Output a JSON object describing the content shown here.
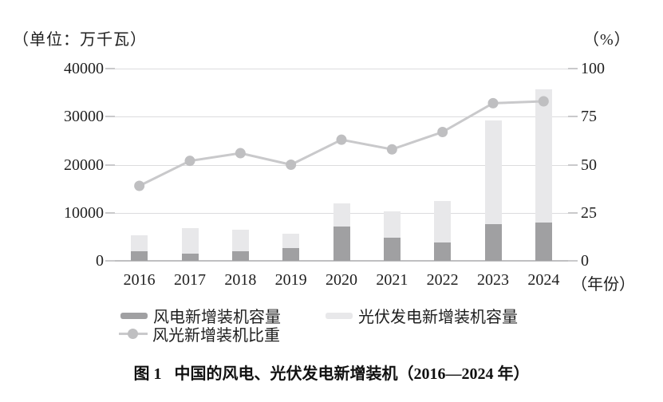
{
  "figure": {
    "caption_prefix": "图 1",
    "caption_text": "中国的风电、光伏发电新增装机（2016—2024 年）"
  },
  "chart_data": {
    "type": "bar",
    "subtype": "stacked-bars-with-line",
    "title": "中国的风电、光伏发电新增装机（2016—2024 年）",
    "categories": [
      "2016",
      "2017",
      "2018",
      "2019",
      "2020",
      "2021",
      "2022",
      "2023",
      "2024"
    ],
    "series": [
      {
        "name": "风电新增装机容量",
        "type": "bar",
        "stack": "new-capacity",
        "axis": "left",
        "color": "#a0a0a2",
        "values": [
          1930,
          1503,
          2059,
          2574,
          7167,
          4757,
          3763,
          7590,
          7982
        ]
      },
      {
        "name": "光伏发电新增装机容量",
        "type": "bar",
        "stack": "new-capacity",
        "axis": "left",
        "color": "#e8e8ea",
        "values": [
          3454,
          5306,
          4426,
          3011,
          4820,
          5488,
          8741,
          21688,
          27757
        ]
      },
      {
        "name": "风光新增装机比重",
        "type": "line",
        "axis": "right",
        "color": "#c9c9cb",
        "marker_color": "#bfbfc1",
        "values": [
          39,
          52,
          56,
          50,
          63,
          58,
          67,
          82,
          83
        ]
      }
    ],
    "left_axis": {
      "title": "（单位：万千瓦）",
      "ticks": [
        0,
        10000,
        20000,
        30000,
        40000
      ],
      "min": 0,
      "max": 40000
    },
    "right_axis": {
      "title": "（%）",
      "ticks": [
        0,
        25,
        50,
        75,
        100
      ],
      "min": 0,
      "max": 100
    },
    "x_axis": {
      "label": "年份",
      "suffix_label": "（年份）"
    },
    "grid": true,
    "legend_position": "bottom"
  }
}
